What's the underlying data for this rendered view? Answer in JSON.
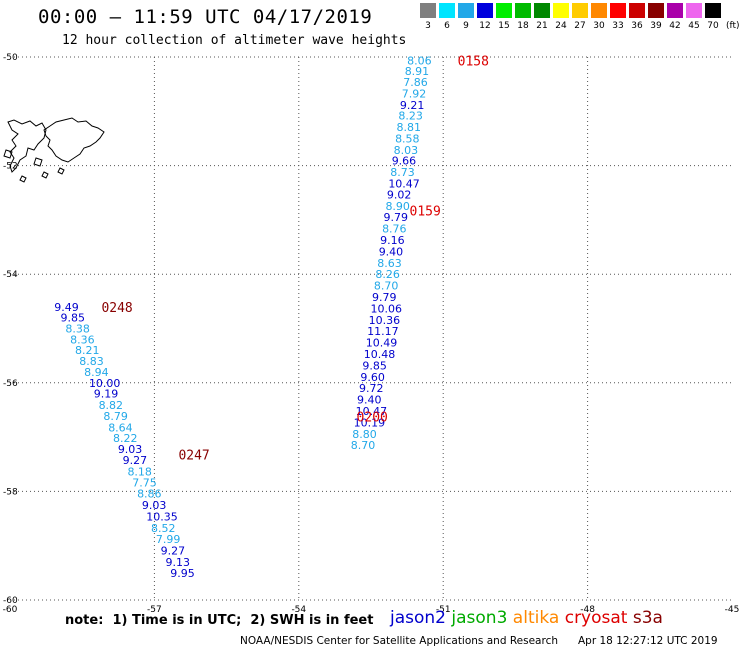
{
  "header": {
    "title": "00:00 – 11:59 UTC 04/17/2019",
    "subtitle": "12 hour collection of altimeter wave heights"
  },
  "legend": {
    "unit": "(ft)",
    "bins": [
      {
        "label": "3",
        "color": "#7f7f7f"
      },
      {
        "label": "6",
        "color": "#00e5ff"
      },
      {
        "label": "9",
        "color": "#22a8e8"
      },
      {
        "label": "12",
        "color": "#0000dd"
      },
      {
        "label": "15",
        "color": "#00ee00"
      },
      {
        "label": "18",
        "color": "#00bb00"
      },
      {
        "label": "21",
        "color": "#008800"
      },
      {
        "label": "24",
        "color": "#ffff00"
      },
      {
        "label": "27",
        "color": "#ffcc00"
      },
      {
        "label": "30",
        "color": "#ff8800"
      },
      {
        "label": "33",
        "color": "#ff0000"
      },
      {
        "label": "36",
        "color": "#cc0000"
      },
      {
        "label": "39",
        "color": "#880000"
      },
      {
        "label": "42",
        "color": "#aa00aa"
      },
      {
        "label": "45",
        "color": "#ee66ee"
      },
      {
        "label": "70",
        "color": "#000000"
      }
    ]
  },
  "map": {
    "lon_range": [
      -60,
      -45
    ],
    "lat_range": [
      -60,
      -50
    ],
    "lon_ticks": [
      "-60",
      "-57",
      "-54",
      "-51",
      "-48",
      "-45"
    ],
    "lat_ticks": [
      "-50",
      "-52",
      "-54",
      "-56",
      "-58",
      "-60"
    ],
    "colors": {
      "light": "#22a8e8",
      "dark": "#0000cc",
      "track_red": "#dd0000",
      "track_dark": "#880000"
    }
  },
  "tracks": [
    {
      "id": "track-east",
      "times": [
        {
          "label": "0158",
          "lon": -50.7,
          "lat": -50.06,
          "color": "#dd0000"
        },
        {
          "label": "0159",
          "lon": -51.7,
          "lat": -52.83,
          "color": "#dd0000"
        },
        {
          "label": "0200",
          "lon": -52.8,
          "lat": -56.62,
          "color": "#dd0000"
        }
      ],
      "points": [
        {
          "v": "8.06",
          "lon": -51.75,
          "lat": -50.06,
          "c": "light"
        },
        {
          "v": "8.91",
          "lon": -51.8,
          "lat": -50.26,
          "c": "light"
        },
        {
          "v": "7.86",
          "lon": -51.83,
          "lat": -50.46,
          "c": "light"
        },
        {
          "v": "7.92",
          "lon": -51.86,
          "lat": -50.67,
          "c": "light"
        },
        {
          "v": "9.21",
          "lon": -51.9,
          "lat": -50.88,
          "c": "dark"
        },
        {
          "v": "8.23",
          "lon": -51.93,
          "lat": -51.08,
          "c": "light"
        },
        {
          "v": "8.81",
          "lon": -51.97,
          "lat": -51.29,
          "c": "light"
        },
        {
          "v": "8.58",
          "lon": -52.0,
          "lat": -51.5,
          "c": "light"
        },
        {
          "v": "8.03",
          "lon": -52.03,
          "lat": -51.71,
          "c": "light"
        },
        {
          "v": "9.66",
          "lon": -52.07,
          "lat": -51.91,
          "c": "dark"
        },
        {
          "v": "8.73",
          "lon": -52.1,
          "lat": -52.12,
          "c": "light"
        },
        {
          "v": "10.47",
          "lon": -52.14,
          "lat": -52.33,
          "c": "dark"
        },
        {
          "v": "9.02",
          "lon": -52.17,
          "lat": -52.53,
          "c": "dark"
        },
        {
          "v": "8.90",
          "lon": -52.2,
          "lat": -52.74,
          "c": "light"
        },
        {
          "v": "9.79",
          "lon": -52.24,
          "lat": -52.95,
          "c": "dark"
        },
        {
          "v": "8.76",
          "lon": -52.27,
          "lat": -53.16,
          "c": "light"
        },
        {
          "v": "9.16",
          "lon": -52.31,
          "lat": -53.37,
          "c": "dark"
        },
        {
          "v": "9.40",
          "lon": -52.34,
          "lat": -53.58,
          "c": "dark"
        },
        {
          "v": "8.63",
          "lon": -52.37,
          "lat": -53.79,
          "c": "light"
        },
        {
          "v": "8.26",
          "lon": -52.41,
          "lat": -54.0,
          "c": "light"
        },
        {
          "v": "8.70",
          "lon": -52.44,
          "lat": -54.21,
          "c": "light"
        },
        {
          "v": "9.79",
          "lon": -52.48,
          "lat": -54.42,
          "c": "dark"
        },
        {
          "v": "10.06",
          "lon": -52.51,
          "lat": -54.63,
          "c": "dark"
        },
        {
          "v": "10.36",
          "lon": -52.55,
          "lat": -54.84,
          "c": "dark"
        },
        {
          "v": "11.17",
          "lon": -52.58,
          "lat": -55.05,
          "c": "dark"
        },
        {
          "v": "10.49",
          "lon": -52.61,
          "lat": -55.26,
          "c": "dark"
        },
        {
          "v": "10.48",
          "lon": -52.65,
          "lat": -55.47,
          "c": "dark"
        },
        {
          "v": "9.85",
          "lon": -52.68,
          "lat": -55.68,
          "c": "dark"
        },
        {
          "v": "9.60",
          "lon": -52.72,
          "lat": -55.89,
          "c": "dark"
        },
        {
          "v": "9.72",
          "lon": -52.75,
          "lat": -56.1,
          "c": "dark"
        },
        {
          "v": "9.40",
          "lon": -52.79,
          "lat": -56.31,
          "c": "dark"
        },
        {
          "v": "10.47",
          "lon": -52.82,
          "lat": -56.52,
          "c": "dark"
        },
        {
          "v": "10.19",
          "lon": -52.86,
          "lat": -56.73,
          "c": "dark"
        },
        {
          "v": "8.80",
          "lon": -52.89,
          "lat": -56.94,
          "c": "light"
        },
        {
          "v": "8.70",
          "lon": -52.92,
          "lat": -57.15,
          "c": "light"
        }
      ]
    },
    {
      "id": "track-west",
      "times": [
        {
          "label": "0248",
          "lon": -58.1,
          "lat": -54.6,
          "color": "#880000"
        },
        {
          "label": "0247",
          "lon": -56.5,
          "lat": -57.32,
          "color": "#880000"
        }
      ],
      "points": [
        {
          "v": "9.49",
          "lon": -59.08,
          "lat": -54.6,
          "c": "dark"
        },
        {
          "v": "9.85",
          "lon": -58.95,
          "lat": -54.8,
          "c": "dark"
        },
        {
          "v": "8.38",
          "lon": -58.85,
          "lat": -55.0,
          "c": "light"
        },
        {
          "v": "8.36",
          "lon": -58.75,
          "lat": -55.2,
          "c": "light"
        },
        {
          "v": "8.21",
          "lon": -58.65,
          "lat": -55.4,
          "c": "light"
        },
        {
          "v": "8.83",
          "lon": -58.56,
          "lat": -55.6,
          "c": "light"
        },
        {
          "v": "8.94",
          "lon": -58.46,
          "lat": -55.8,
          "c": "light"
        },
        {
          "v": "10.00",
          "lon": -58.36,
          "lat": -56.0,
          "c": "dark"
        },
        {
          "v": "9.19",
          "lon": -58.26,
          "lat": -56.2,
          "c": "dark"
        },
        {
          "v": "8.82",
          "lon": -58.16,
          "lat": -56.41,
          "c": "light"
        },
        {
          "v": "8.79",
          "lon": -58.06,
          "lat": -56.61,
          "c": "light"
        },
        {
          "v": "8.64",
          "lon": -57.96,
          "lat": -56.82,
          "c": "light"
        },
        {
          "v": "8.22",
          "lon": -57.86,
          "lat": -57.02,
          "c": "light"
        },
        {
          "v": "9.03",
          "lon": -57.76,
          "lat": -57.22,
          "c": "dark"
        },
        {
          "v": "9.27",
          "lon": -57.66,
          "lat": -57.42,
          "c": "dark"
        },
        {
          "v": "8.18",
          "lon": -57.56,
          "lat": -57.63,
          "c": "light"
        },
        {
          "v": "7.75",
          "lon": -57.46,
          "lat": -57.84,
          "c": "light"
        },
        {
          "v": "8.86",
          "lon": -57.36,
          "lat": -58.04,
          "c": "light"
        },
        {
          "v": "9.03",
          "lon": -57.26,
          "lat": -58.25,
          "c": "dark"
        },
        {
          "v": "10.35",
          "lon": -57.17,
          "lat": -58.46,
          "c": "dark"
        },
        {
          "v": "8.52",
          "lon": -57.07,
          "lat": -58.67,
          "c": "light"
        },
        {
          "v": "7.99",
          "lon": -56.97,
          "lat": -58.88,
          "c": "light"
        },
        {
          "v": "9.27",
          "lon": -56.87,
          "lat": -59.09,
          "c": "dark"
        },
        {
          "v": "9.13",
          "lon": -56.77,
          "lat": -59.3,
          "c": "dark"
        },
        {
          "v": "9.95",
          "lon": -56.67,
          "lat": -59.5,
          "c": "dark"
        }
      ]
    }
  ],
  "footer": {
    "note": "note:  1) Time is in UTC;  2) SWH is in feet",
    "satellites": [
      {
        "name": "jason2",
        "color": "#0000cc"
      },
      {
        "name": "jason3",
        "color": "#00aa00"
      },
      {
        "name": "altika",
        "color": "#ff8800"
      },
      {
        "name": "cryosat",
        "color": "#dd0000"
      },
      {
        "name": "s3a",
        "color": "#880000"
      }
    ],
    "credit": "NOAA/NESDIS Center for Satellite Applications and Research",
    "timestamp": "Apr 18 12:27:12 UTC 2019"
  }
}
